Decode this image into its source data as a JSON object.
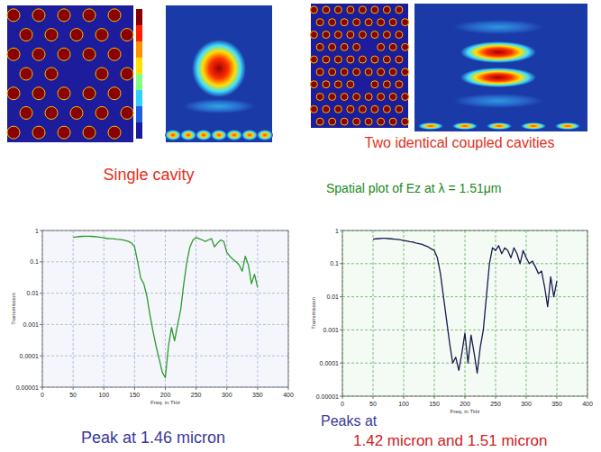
{
  "chart_data": [
    {
      "type": "line",
      "title": "Single cavity",
      "annotations": [
        "Peak at 1.46 micron"
      ],
      "x_label": "Freq. in THz",
      "y_label": "Transmission",
      "x": [
        50,
        55,
        60,
        65,
        70,
        75,
        80,
        85,
        90,
        95,
        100,
        105,
        110,
        115,
        120,
        125,
        130,
        135,
        140,
        145,
        150,
        155,
        160,
        165,
        170,
        175,
        180,
        185,
        190,
        195,
        200,
        205,
        210,
        215,
        220,
        225,
        230,
        235,
        240,
        245,
        250,
        255,
        260,
        265,
        270,
        275,
        280,
        285,
        290,
        295,
        300,
        305,
        310,
        315,
        320,
        325,
        330,
        335,
        340,
        345,
        350
      ],
      "series": [
        {
          "color": "#2e9a2e",
          "values": [
            0.6,
            0.62,
            0.64,
            0.65,
            0.66,
            0.66,
            0.65,
            0.64,
            0.62,
            0.6,
            0.58,
            0.56,
            0.55,
            0.55,
            0.53,
            0.52,
            0.5,
            0.48,
            0.45,
            0.4,
            0.3,
            0.1,
            0.03,
            0.02,
            0.008,
            0.002,
            0.0006,
            0.0002,
            8e-05,
            3e-05,
            2e-05,
            0.0002,
            0.0008,
            0.0003,
            0.001,
            0.003,
            0.02,
            0.1,
            0.3,
            0.5,
            0.6,
            0.55,
            0.5,
            0.45,
            0.5,
            0.55,
            0.3,
            0.4,
            0.5,
            0.45,
            0.2,
            0.15,
            0.12,
            0.1,
            0.08,
            0.05,
            0.15,
            0.08,
            0.02,
            0.04,
            0.015
          ]
        }
      ],
      "xlim": [
        0,
        400
      ],
      "xticks": [
        0,
        50,
        100,
        150,
        200,
        250,
        300,
        350,
        400
      ],
      "ylim": [
        1e-05,
        1
      ],
      "yticks": [
        1,
        0.1,
        0.01,
        0.001,
        0.0001,
        1e-05
      ],
      "log": "y",
      "grid": true
    },
    {
      "type": "line",
      "title": "Two identical coupled cavities",
      "subtitle": "Spatial plot of Ez at λ = 1.51μm",
      "annotations": [
        "Peaks at",
        "1.42 micron and 1.51 micron"
      ],
      "x_label": "Freq. in THz",
      "y_label": "Transmission",
      "x": [
        50,
        55,
        60,
        65,
        70,
        75,
        80,
        85,
        90,
        95,
        100,
        105,
        110,
        115,
        120,
        125,
        130,
        135,
        140,
        145,
        150,
        155,
        160,
        165,
        170,
        175,
        180,
        185,
        190,
        195,
        200,
        205,
        210,
        215,
        220,
        225,
        230,
        235,
        240,
        245,
        250,
        255,
        260,
        265,
        270,
        275,
        280,
        285,
        290,
        295,
        300,
        305,
        310,
        315,
        320,
        325,
        330,
        335,
        340,
        345,
        350
      ],
      "series": [
        {
          "color": "#1a1a50",
          "values": [
            0.55,
            0.56,
            0.57,
            0.58,
            0.58,
            0.57,
            0.56,
            0.55,
            0.54,
            0.52,
            0.5,
            0.48,
            0.46,
            0.45,
            0.42,
            0.4,
            0.38,
            0.35,
            0.32,
            0.28,
            0.25,
            0.15,
            0.05,
            0.01,
            0.002,
            0.0004,
            0.0001,
            0.00015,
            6e-05,
            0.0002,
            0.0008,
            0.0001,
            0.0007,
            0.0002,
            5e-05,
            0.0003,
            0.001,
            0.01,
            0.1,
            0.3,
            0.25,
            0.35,
            0.2,
            0.3,
            0.25,
            0.15,
            0.3,
            0.2,
            0.1,
            0.25,
            0.15,
            0.1,
            0.12,
            0.08,
            0.05,
            0.06,
            0.02,
            0.005,
            0.04,
            0.01,
            0.03
          ]
        }
      ],
      "xlim": [
        0,
        400
      ],
      "xticks": [
        0,
        50,
        100,
        150,
        200,
        250,
        300,
        350,
        400
      ],
      "ylim": [
        1e-05,
        1
      ],
      "yticks": [
        1,
        0.1,
        0.01,
        0.001,
        0.0001,
        1e-05
      ],
      "log": "y",
      "grid": true
    }
  ]
}
